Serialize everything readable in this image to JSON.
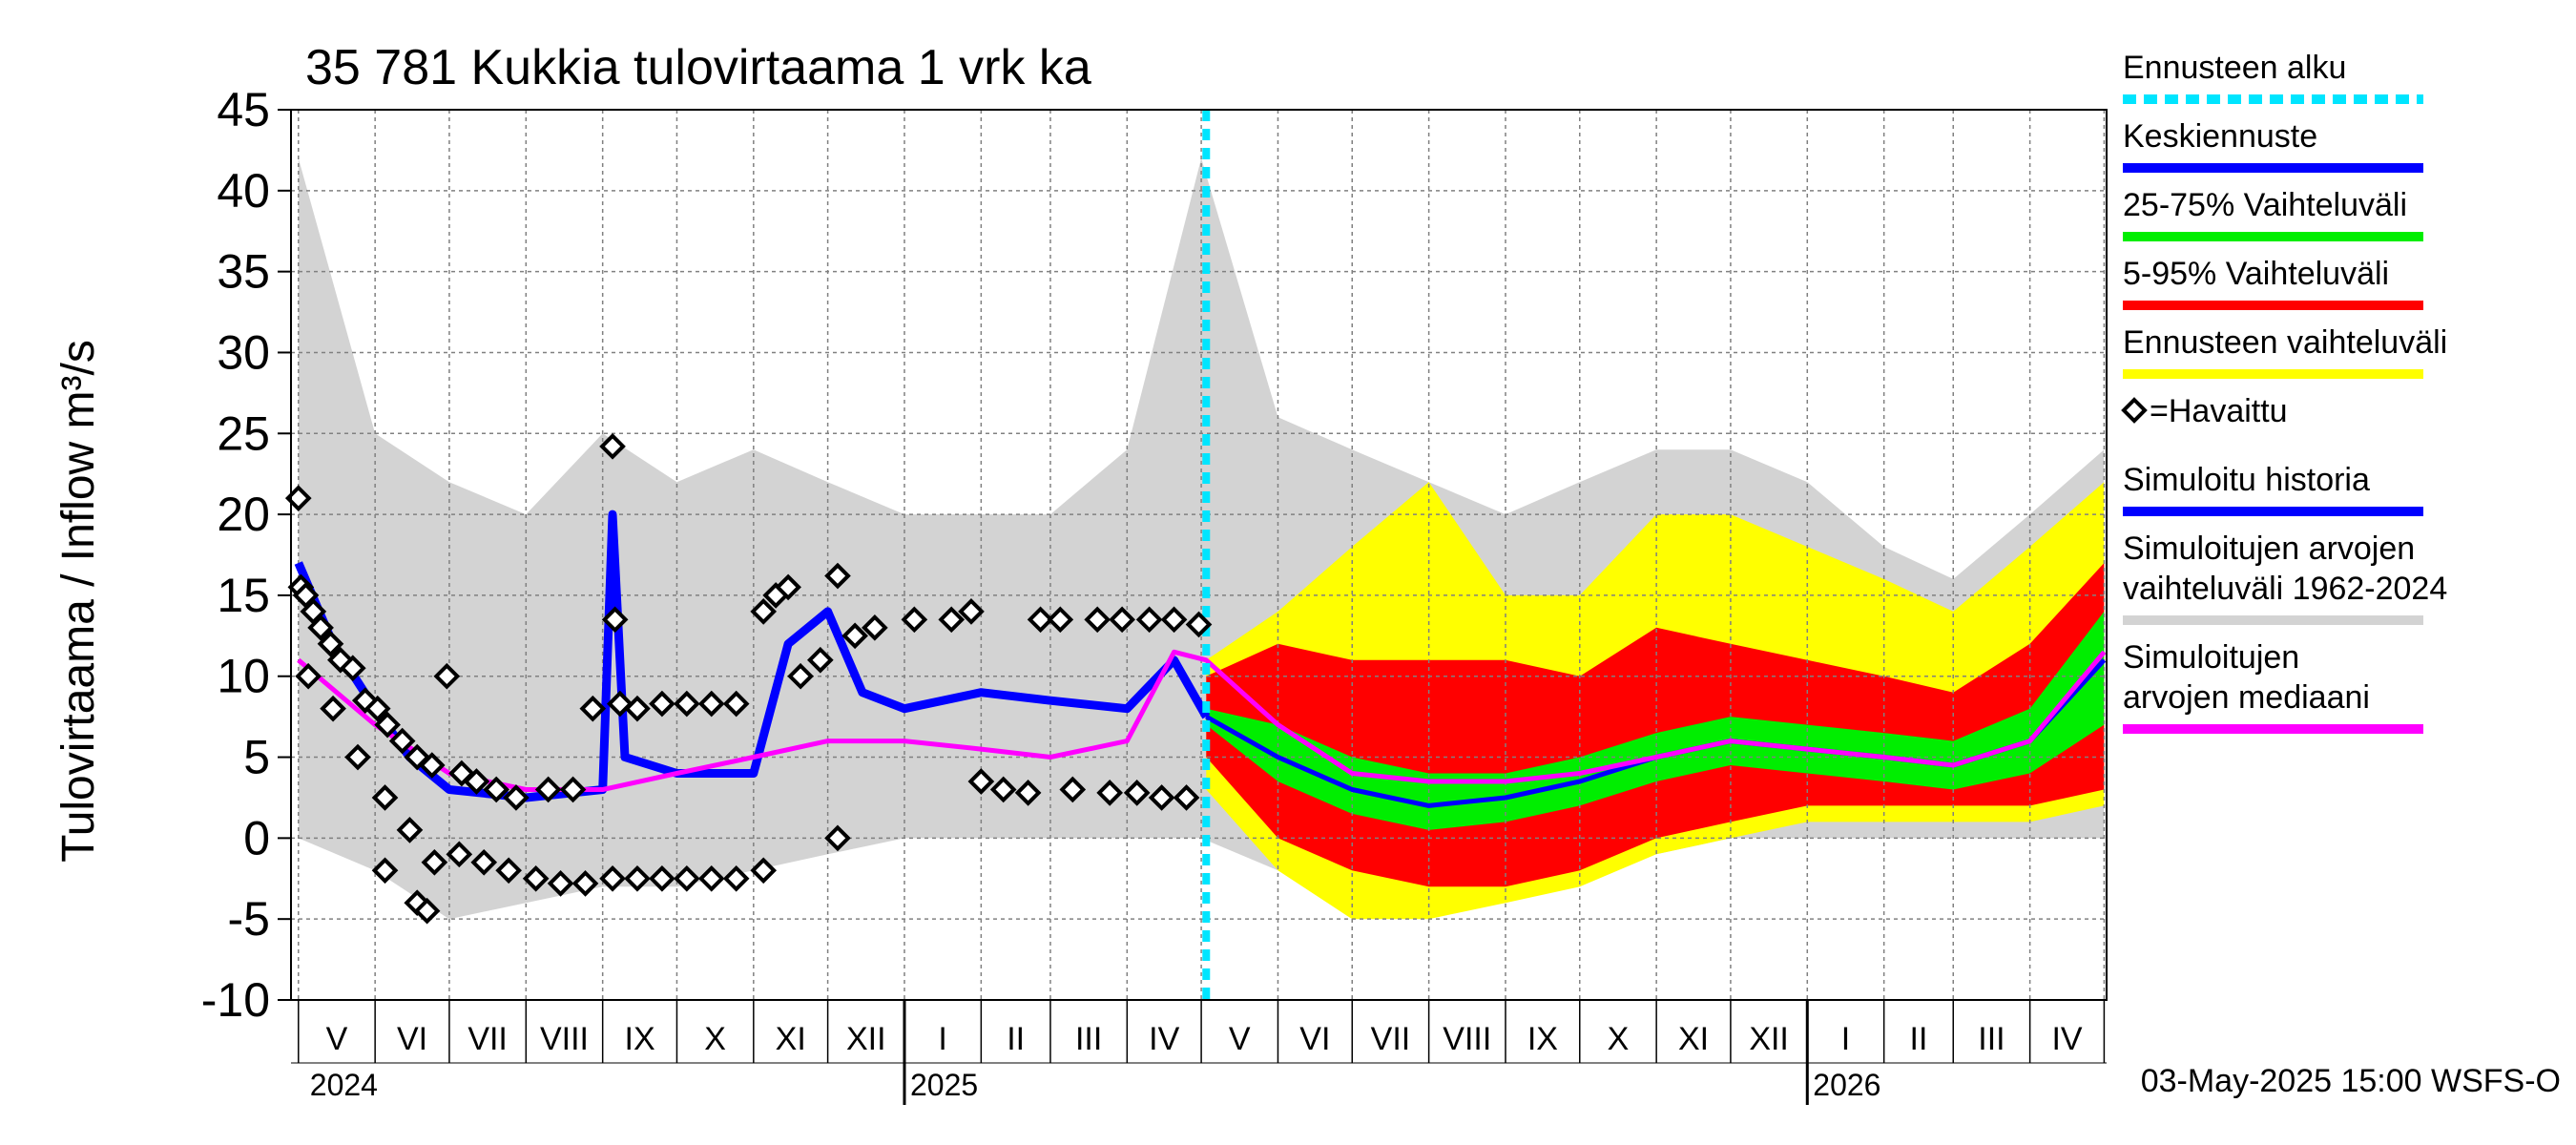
{
  "chart_data": {
    "type": "area",
    "title": "35 781 Kukkia tulovirtaama 1 vrk ka",
    "ylabel": "Tulovirtaama / Inflow    m³/s",
    "ylim": [
      -10,
      45
    ],
    "yticks": [
      "45",
      "40",
      "35",
      "30",
      "25",
      "20",
      "15",
      "10",
      "5",
      "0",
      "-5",
      "-10"
    ],
    "months": [
      "V",
      "VI",
      "VII",
      "VIII",
      "IX",
      "X",
      "XI",
      "XII",
      "I",
      "II",
      "III",
      "IV",
      "V",
      "VI",
      "VII",
      "VIII",
      "IX",
      "X",
      "XI",
      "XII",
      "I",
      "II",
      "III",
      "IV"
    ],
    "years": [
      "2024",
      "2025",
      "2026"
    ],
    "forecast_start": "2025-05-03",
    "footer": "03-May-2025 15:00 WSFS-O",
    "grid": true,
    "legend_position": "right",
    "legend": [
      {
        "label": "Ennusteen alku",
        "color": "#00e5ff",
        "style": "dashed"
      },
      {
        "label": "Keskiennuste",
        "color": "#0000ff",
        "style": "solid"
      },
      {
        "label": "25-75% Vaihteluväli",
        "color": "#00ee00",
        "style": "solid"
      },
      {
        "label": "5-95% Vaihteluväli",
        "color": "#ff0000",
        "style": "solid"
      },
      {
        "label": "Ennusteen vaihteluväli",
        "color": "#ffff00",
        "style": "solid"
      },
      {
        "label": "=Havaittu",
        "color": "#000000",
        "style": "marker"
      },
      {
        "label": "Simuloitu historia",
        "color": "#0000ff",
        "style": "solid"
      },
      {
        "label": "Simuloitujen arvojen vaihteluväli 1962-2024",
        "color": "#d3d3d3",
        "style": "solid"
      },
      {
        "label": "Simuloitujen arvojen mediaani",
        "color": "#ff00ff",
        "style": "solid"
      }
    ],
    "series": [
      {
        "name": "=Havaittu",
        "color": "#000000",
        "type": "scatter",
        "points": [
          [
            "2024-05-01",
            21
          ],
          [
            "2024-05-02",
            15.5
          ],
          [
            "2024-05-04",
            15
          ],
          [
            "2024-05-07",
            14
          ],
          [
            "2024-05-10",
            13
          ],
          [
            "2024-05-14",
            12
          ],
          [
            "2024-05-18",
            11
          ],
          [
            "2024-05-23",
            10.5
          ],
          [
            "2024-05-28",
            8.5
          ],
          [
            "2024-06-02",
            8
          ],
          [
            "2024-06-06",
            7
          ],
          [
            "2024-06-12",
            6
          ],
          [
            "2024-06-18",
            5
          ],
          [
            "2024-06-24",
            4.5
          ],
          [
            "2024-06-30",
            10
          ],
          [
            "2024-07-06",
            4
          ],
          [
            "2024-07-12",
            3.5
          ],
          [
            "2024-07-20",
            3
          ],
          [
            "2024-07-28",
            2.5
          ],
          [
            "2024-08-10",
            3
          ],
          [
            "2024-08-20",
            3
          ],
          [
            "2024-08-28",
            8
          ],
          [
            "2024-09-05",
            24.2
          ],
          [
            "2024-09-06",
            13.5
          ],
          [
            "2024-09-08",
            8.3
          ],
          [
            "2024-09-15",
            8
          ],
          [
            "2024-09-25",
            8.3
          ],
          [
            "2024-10-05",
            8.3
          ],
          [
            "2024-10-15",
            8.3
          ],
          [
            "2024-10-25",
            8.3
          ],
          [
            "2024-11-05",
            14
          ],
          [
            "2024-11-10",
            15
          ],
          [
            "2024-11-15",
            15.5
          ],
          [
            "2024-11-20",
            10
          ],
          [
            "2024-11-28",
            11
          ],
          [
            "2024-12-05",
            16.2
          ],
          [
            "2024-12-12",
            12.5
          ],
          [
            "2024-12-20",
            13
          ],
          [
            "2025-01-05",
            13.5
          ],
          [
            "2025-01-20",
            13.5
          ],
          [
            "2025-01-28",
            14
          ],
          [
            "2025-02-01",
            3.5
          ],
          [
            "2025-02-10",
            3
          ],
          [
            "2025-02-20",
            2.8
          ],
          [
            "2025-02-25",
            13.5
          ],
          [
            "2025-03-05",
            13.5
          ],
          [
            "2025-03-10",
            3
          ],
          [
            "2025-03-20",
            13.5
          ],
          [
            "2025-03-25",
            2.8
          ],
          [
            "2025-03-30",
            13.5
          ],
          [
            "2025-04-05",
            2.8
          ],
          [
            "2025-04-10",
            13.5
          ],
          [
            "2025-04-15",
            2.5
          ],
          [
            "2025-04-20",
            13.5
          ],
          [
            "2025-04-25",
            2.5
          ],
          [
            "2025-04-30",
            13.2
          ],
          [
            "2024-05-05",
            10
          ],
          [
            "2024-05-15",
            8
          ],
          [
            "2024-05-25",
            5
          ],
          [
            "2024-06-05",
            2.5
          ],
          [
            "2024-06-15",
            0.5
          ],
          [
            "2024-06-25",
            -1.5
          ],
          [
            "2024-07-05",
            -1
          ],
          [
            "2024-07-15",
            -1.5
          ],
          [
            "2024-07-25",
            -2
          ],
          [
            "2024-08-05",
            -2.5
          ],
          [
            "2024-08-15",
            -2.8
          ],
          [
            "2024-08-25",
            -2.8
          ],
          [
            "2024-09-05",
            -2.5
          ],
          [
            "2024-09-15",
            -2.5
          ],
          [
            "2024-09-25",
            -2.5
          ],
          [
            "2024-10-05",
            -2.5
          ],
          [
            "2024-10-15",
            -2.5
          ],
          [
            "2024-10-25",
            -2.5
          ],
          [
            "2024-11-05",
            -2
          ],
          [
            "2024-12-05",
            0
          ],
          [
            "2024-06-05",
            -2
          ],
          [
            "2024-06-18",
            -4
          ],
          [
            "2024-06-22",
            -4.5
          ]
        ]
      },
      {
        "name": "Keskiennuste",
        "color": "#0000ff",
        "type": "line",
        "points": [
          [
            "2025-05-03",
            7.5
          ],
          [
            "2025-06-01",
            5
          ],
          [
            "2025-07-01",
            3
          ],
          [
            "2025-08-01",
            2
          ],
          [
            "2025-09-01",
            2.5
          ],
          [
            "2025-10-01",
            3.5
          ],
          [
            "2025-11-01",
            5
          ],
          [
            "2025-12-01",
            6
          ],
          [
            "2026-01-01",
            5.5
          ],
          [
            "2026-02-01",
            5
          ],
          [
            "2026-03-01",
            4.5
          ],
          [
            "2026-04-01",
            6
          ],
          [
            "2026-05-01",
            11
          ]
        ]
      },
      {
        "name": "Simuloitu historia",
        "color": "#0000ff",
        "type": "line",
        "points": [
          [
            "2024-05-01",
            17
          ],
          [
            "2024-05-15",
            12
          ],
          [
            "2024-06-01",
            8
          ],
          [
            "2024-06-15",
            5
          ],
          [
            "2024-07-01",
            3
          ],
          [
            "2024-08-01",
            2.5
          ],
          [
            "2024-09-01",
            3
          ],
          [
            "2024-09-05",
            20
          ],
          [
            "2024-09-10",
            5
          ],
          [
            "2024-10-01",
            4
          ],
          [
            "2024-11-01",
            4
          ],
          [
            "2024-11-15",
            12
          ],
          [
            "2024-12-01",
            14
          ],
          [
            "2024-12-15",
            9
          ],
          [
            "2025-01-01",
            8
          ],
          [
            "2025-02-01",
            9
          ],
          [
            "2025-03-01",
            8.5
          ],
          [
            "2025-04-01",
            8
          ],
          [
            "2025-04-20",
            11
          ],
          [
            "2025-05-03",
            7.5
          ]
        ]
      },
      {
        "name": "Simuloitujen arvojen mediaani",
        "color": "#ff00ff",
        "type": "line",
        "points": [
          [
            "2024-05-01",
            11
          ],
          [
            "2024-06-01",
            7
          ],
          [
            "2024-07-01",
            4
          ],
          [
            "2024-08-01",
            3
          ],
          [
            "2024-09-01",
            3
          ],
          [
            "2024-10-01",
            4
          ],
          [
            "2024-11-01",
            5
          ],
          [
            "2024-12-01",
            6
          ],
          [
            "2025-01-01",
            6
          ],
          [
            "2025-02-01",
            5.5
          ],
          [
            "2025-03-01",
            5
          ],
          [
            "2025-04-01",
            6
          ],
          [
            "2025-04-20",
            11.5
          ],
          [
            "2025-05-03",
            11
          ],
          [
            "2025-06-01",
            7
          ],
          [
            "2025-07-01",
            4
          ],
          [
            "2025-08-01",
            3.5
          ],
          [
            "2025-09-01",
            3.5
          ],
          [
            "2025-10-01",
            4
          ],
          [
            "2025-11-01",
            5
          ],
          [
            "2025-12-01",
            6
          ],
          [
            "2026-01-01",
            5.5
          ],
          [
            "2026-02-01",
            5
          ],
          [
            "2026-03-01",
            4.5
          ],
          [
            "2026-04-01",
            6
          ],
          [
            "2026-05-01",
            11.5
          ]
        ]
      },
      {
        "name": "Simuloitujen arvojen vaihteluväli 1962-2024",
        "color": "#d3d3d3",
        "type": "area",
        "x": [
          "2024-05-01",
          "2024-06-01",
          "2024-07-01",
          "2024-08-01",
          "2024-09-01",
          "2024-10-01",
          "2024-11-01",
          "2024-12-01",
          "2025-01-01",
          "2025-02-01",
          "2025-03-01",
          "2025-04-01",
          "2025-05-01",
          "2025-06-01",
          "2025-07-01",
          "2025-08-01",
          "2025-09-01",
          "2025-10-01",
          "2025-11-01",
          "2025-12-01",
          "2026-01-01",
          "2026-02-01",
          "2026-03-01",
          "2026-04-01",
          "2026-05-01"
        ],
        "upper": [
          42,
          25,
          22,
          20,
          25,
          22,
          24,
          22,
          20,
          20,
          20,
          24,
          42,
          26,
          24,
          22,
          20,
          22,
          24,
          24,
          22,
          18,
          16,
          20,
          24
        ],
        "lower": [
          0,
          -2,
          -5,
          -4,
          -3,
          -3,
          -2,
          -1,
          0,
          0,
          0,
          0,
          0,
          -2,
          -4,
          -4,
          -3,
          -2,
          -1,
          0,
          0,
          0,
          0,
          0,
          0
        ]
      },
      {
        "name": "Ennusteen vaihteluväli",
        "color": "#ffff00",
        "type": "area",
        "x": [
          "2025-05-03",
          "2025-06-01",
          "2025-07-01",
          "2025-08-01",
          "2025-09-01",
          "2025-10-01",
          "2025-11-01",
          "2025-12-01",
          "2026-01-01",
          "2026-02-01",
          "2026-03-01",
          "2026-04-01",
          "2026-05-01"
        ],
        "upper": [
          11,
          14,
          18,
          22,
          15,
          15,
          20,
          20,
          18,
          16,
          14,
          18,
          22
        ],
        "lower": [
          3,
          -2,
          -5,
          -5,
          -4,
          -3,
          -1,
          0,
          1,
          1,
          1,
          1,
          2
        ]
      },
      {
        "name": "5-95% Vaihteluväli",
        "color": "#ff0000",
        "type": "area",
        "x": [
          "2025-05-03",
          "2025-06-01",
          "2025-07-01",
          "2025-08-01",
          "2025-09-01",
          "2025-10-01",
          "2025-11-01",
          "2025-12-01",
          "2026-01-01",
          "2026-02-01",
          "2026-03-01",
          "2026-04-01",
          "2026-05-01"
        ],
        "upper": [
          10,
          12,
          11,
          11,
          11,
          10,
          13,
          12,
          11,
          10,
          9,
          12,
          17
        ],
        "lower": [
          5,
          0,
          -2,
          -3,
          -3,
          -2,
          0,
          1,
          2,
          2,
          2,
          2,
          3
        ]
      },
      {
        "name": "25-75% Vaihteluväli",
        "color": "#00ee00",
        "type": "area",
        "x": [
          "2025-05-03",
          "2025-06-01",
          "2025-07-01",
          "2025-08-01",
          "2025-09-01",
          "2025-10-01",
          "2025-11-01",
          "2025-12-01",
          "2026-01-01",
          "2026-02-01",
          "2026-03-01",
          "2026-04-01",
          "2026-05-01"
        ],
        "upper": [
          8,
          7,
          5,
          4,
          4,
          5,
          6.5,
          7.5,
          7,
          6.5,
          6,
          8,
          14
        ],
        "lower": [
          7,
          3.5,
          1.5,
          0.5,
          1,
          2,
          3.5,
          4.5,
          4,
          3.5,
          3,
          4,
          7
        ]
      }
    ]
  }
}
